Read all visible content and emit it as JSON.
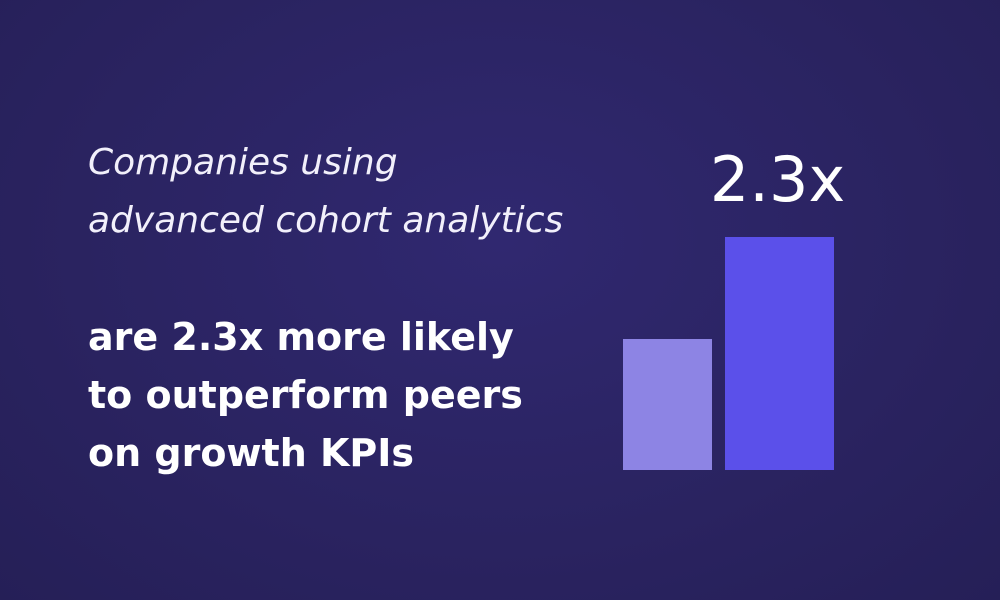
{
  "intro": {
    "lines": [
      "Companies using",
      "advanced cohort analytics"
    ]
  },
  "statement": {
    "lines": [
      "are 2.3x more likely",
      "to outperform peers",
      "on growth KPIs"
    ]
  },
  "stat": "2.3x"
}
